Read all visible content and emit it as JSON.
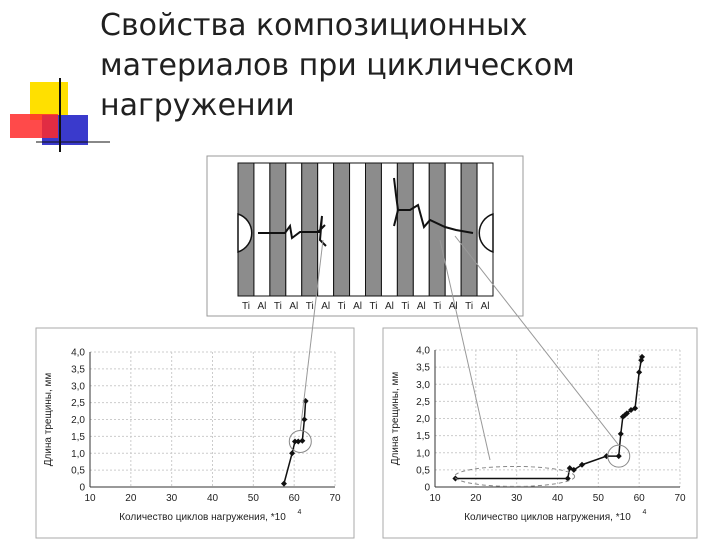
{
  "slide": {
    "title_lines": [
      "Свойства композиционных",
      "материалов при циклическом",
      "нагружении"
    ]
  },
  "specimen": {
    "layer_labels": [
      "Ti",
      "Al",
      "Ti",
      "Al",
      "Ti",
      "Al",
      "Ti",
      "Al",
      "Ti",
      "Al",
      "Ti",
      "Al",
      "Ti",
      "Al",
      "Ti",
      "Al"
    ],
    "colors": {
      "ti": "#8c8c8c",
      "al": "#ffffff",
      "frame": "#111111"
    }
  },
  "chart_data": [
    {
      "type": "line",
      "xlabel": "Количество циклов нагружения, *10",
      "xlabel_exponent": "4",
      "ylabel": "Длина трещины, мм",
      "xlim": [
        10,
        70
      ],
      "ylim": [
        0,
        4.0
      ],
      "x_ticks": [
        "10",
        "20",
        "30",
        "40",
        "50",
        "60",
        "70"
      ],
      "y_ticks": [
        "0",
        "0,5",
        "1,0",
        "1,5",
        "2,0",
        "2,5",
        "3,0",
        "3,5",
        "4,0"
      ],
      "grid": true,
      "series": [
        {
          "x": [
            57.5,
            59.5,
            60.2,
            61,
            62,
            62.5,
            62.8
          ],
          "y": [
            0.1,
            1.0,
            1.35,
            1.35,
            1.37,
            2.0,
            2.55
          ]
        }
      ],
      "highlight": {
        "x": 61.5,
        "y": 1.35
      }
    },
    {
      "type": "line",
      "xlabel": "Количество циклов нагружения, *10",
      "xlabel_exponent": "4",
      "ylabel": "Длина трещины, мм",
      "xlim": [
        10,
        70
      ],
      "ylim": [
        0,
        4.0
      ],
      "x_ticks": [
        "10",
        "20",
        "30",
        "40",
        "50",
        "60",
        "70"
      ],
      "y_ticks": [
        "0",
        "0,5",
        "1,0",
        "1,5",
        "2,0",
        "2,5",
        "3,0",
        "3,5",
        "4,0"
      ],
      "grid": true,
      "series": [
        {
          "x": [
            15,
            42.5,
            43,
            44,
            46,
            52,
            55,
            55.5,
            56,
            56.5,
            57,
            58,
            59,
            60,
            60.5,
            60.7
          ],
          "y": [
            0.25,
            0.25,
            0.55,
            0.5,
            0.65,
            0.9,
            0.9,
            1.55,
            2.05,
            2.1,
            2.15,
            2.25,
            2.3,
            3.35,
            3.7,
            3.8
          ]
        }
      ],
      "highlight": {
        "x": 55,
        "y": 0.9
      }
    }
  ]
}
